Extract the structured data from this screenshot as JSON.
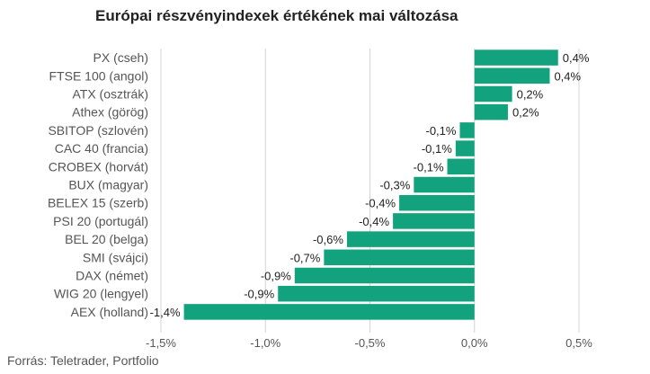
{
  "chart_data": {
    "type": "bar",
    "orientation": "horizontal",
    "title": "Európai részvényindexek értékének mai változása",
    "source": "Forrás: Teletrader, Portfolio",
    "categories": [
      "PX (cseh)",
      "FTSE 100 (angol)",
      "ATX (osztrák)",
      "Athex (görög)",
      "SBITOP (szlovén)",
      "CAC 40 (francia)",
      "CROBEX (horvát)",
      "BUX (magyar)",
      "BELEX 15 (szerb)",
      "PSI 20 (portugál)",
      "BEL 20 (belga)",
      "SMI (svájci)",
      "DAX (német)",
      "WIG 20 (lengyel)",
      "AEX (holland)"
    ],
    "values": [
      0.4,
      0.36,
      0.18,
      0.16,
      -0.07,
      -0.09,
      -0.13,
      -0.29,
      -0.36,
      -0.39,
      -0.61,
      -0.72,
      -0.86,
      -0.94,
      -1.39
    ],
    "data_labels": [
      "0,4%",
      "0,4%",
      "0,2%",
      "0,2%",
      "-0,1%",
      "-0,1%",
      "-0,1%",
      "-0,3%",
      "-0,4%",
      "-0,4%",
      "-0,6%",
      "-0,7%",
      "-0,9%",
      "-0,9%",
      "-1,4%"
    ],
    "xlim": [
      -1.5,
      0.5
    ],
    "x_ticks": [
      {
        "value": -1.5,
        "label": "-1,5%"
      },
      {
        "value": -1.0,
        "label": "-1,0%"
      },
      {
        "value": -0.5,
        "label": "-0,5%"
      },
      {
        "value": 0.0,
        "label": "0,0%"
      },
      {
        "value": 0.5,
        "label": "0,5%"
      }
    ],
    "grid": "vertical",
    "legend": "none",
    "colors": {
      "bar": "#12a37e",
      "grid": "#d4d4d4",
      "label": "#555555",
      "value_label": "#222222"
    }
  }
}
